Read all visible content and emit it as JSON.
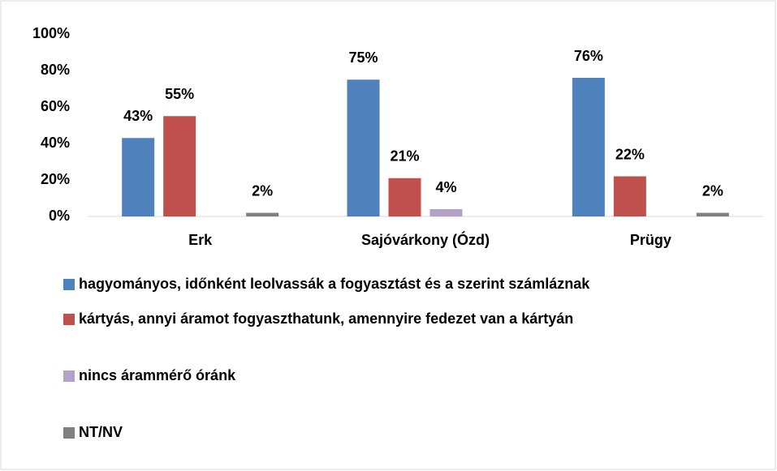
{
  "chart_data": {
    "type": "bar",
    "categories": [
      "Erk",
      "Sajóvárkony (Ózd)",
      "Prügy"
    ],
    "series": [
      {
        "name": "hagyományos, időnként leolvassák a fogyasztást és a szerint számláznak",
        "color": "#4f81bd",
        "values": [
          43,
          75,
          76
        ],
        "value_labels": [
          "43%",
          "75%",
          "76%"
        ]
      },
      {
        "name": "kártyás, annyi áramot fogyaszthatunk, amennyire fedezet van a kártyán",
        "color": "#c0504d",
        "values": [
          55,
          21,
          22
        ],
        "value_labels": [
          "55%",
          "21%",
          "22%"
        ]
      },
      {
        "name": "nincs árammérő óránk",
        "color": "#b3a2c7",
        "values": [
          null,
          4,
          null
        ],
        "value_labels": [
          null,
          "4%",
          null
        ]
      },
      {
        "name": "NT/NV",
        "color": "#808080",
        "values": [
          2,
          null,
          2
        ],
        "value_labels": [
          "2%",
          null,
          "2%"
        ]
      }
    ],
    "ylim": [
      0,
      100
    ],
    "yticks": [
      {
        "value": 0,
        "label": "0%"
      },
      {
        "value": 20,
        "label": "20%"
      },
      {
        "value": 40,
        "label": "40%"
      },
      {
        "value": 60,
        "label": "60%"
      },
      {
        "value": 80,
        "label": "80%"
      },
      {
        "value": 100,
        "label": "100%"
      }
    ],
    "grid": false,
    "legend": "bottom"
  }
}
